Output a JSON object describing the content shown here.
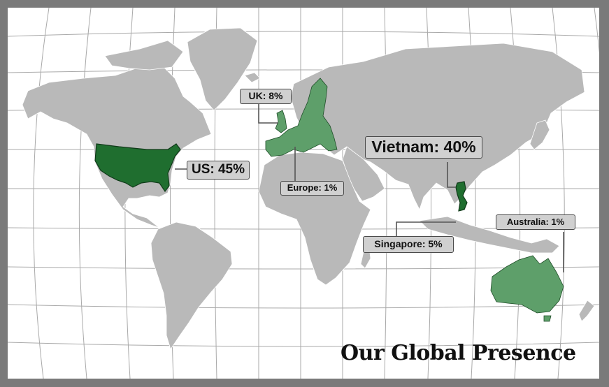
{
  "map": {
    "title": "Our Global Presence",
    "colors": {
      "frame": "#7a7a7a",
      "ocean": "#ffffff",
      "land": "#b9b9b9",
      "grid": "#a9a9a9",
      "highlight_light": "#5e9f6a",
      "highlight_dark": "#1f6e2f",
      "label_fill": "#d0d0d0",
      "label_border": "#4a4a4a"
    },
    "labels": {
      "uk": "UK: 8%",
      "us": "US: 45%",
      "europe": "Europe: 1%",
      "vietnam": "Vietnam: 40%",
      "singapore": "Singapore: 5%",
      "australia": "Australia: 1%"
    },
    "highlighted_regions": [
      "United States",
      "United Kingdom",
      "Europe",
      "Vietnam",
      "Australia"
    ]
  }
}
